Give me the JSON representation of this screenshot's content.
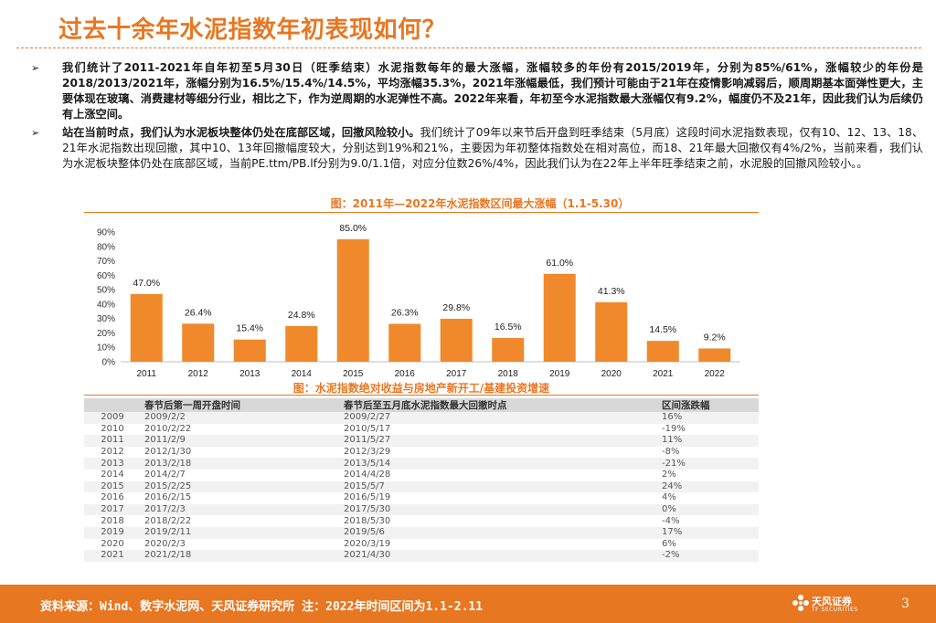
{
  "header": {
    "title": "过去十余年水泥指数年初表现如何？"
  },
  "bullets": [
    {
      "mark": "➢",
      "bold": "我们统计了2011-2021年自年初至5月30日（旺季结束）水泥指数每年的最大涨幅，涨幅较多的年份有2015/2019年，分别为85%/61%，涨幅较少的年份是2018/2013/2021年，涨幅分别为16.5%/15.4%/14.5%，平均涨幅35.3%，2021年涨幅最低，我们预计可能由于21年在疫情影响减弱后，顺周期基本面弹性更大，主要体现在玻璃、消费建材等细分行业，相比之下，作为逆周期的水泥弹性不高。2022年来看，年初至今水泥指数最大涨幅仅有9.2%，幅度仍不及21年，因此我们认为后续仍有上涨空间。",
      "normal": ""
    },
    {
      "mark": "➢",
      "bold": "站在当前时点，我们认为水泥板块整体仍处在底部区域，回撤风险较小。",
      "normal": "我们统计了09年以来节后开盘到旺季结束（5月底）这段时间水泥指数表现，仅有10、12、13、18、21年水泥指数出现回撤，其中10、13年回撤幅度较大，分别达到19%和21%，主要因为年初整体指数处在相对高位，而18、21年最大回撤仅有4%/2%，当前来看，我们认为水泥板块整体仍处在底部区域，当前PE.ttm/PB.lf分别为9.0/1.1倍，对应分位数26%/4%，因此我们认为在22年上半年旺季结束之前，水泥股的回撤风险较小。。"
    }
  ],
  "chart_data": {
    "type": "bar",
    "title": "图：2011年—2022年水泥指数区间最大涨幅（1.1-5.30）",
    "categories": [
      "2011",
      "2012",
      "2013",
      "2014",
      "2015",
      "2016",
      "2017",
      "2018",
      "2019",
      "2020",
      "2021",
      "2022"
    ],
    "values": [
      47.0,
      26.4,
      15.4,
      24.8,
      85.0,
      26.3,
      29.8,
      16.5,
      61.0,
      41.3,
      14.5,
      9.2
    ],
    "data_labels": [
      "47.0%",
      "26.4%",
      "15.4%",
      "24.8%",
      "85.0%",
      "26.3%",
      "29.8%",
      "16.5%",
      "61.0%",
      "41.3%",
      "14.5%",
      "9.2%"
    ],
    "ylim": [
      0,
      90
    ],
    "yticks": [
      "0%",
      "10%",
      "20%",
      "30%",
      "40%",
      "50%",
      "60%",
      "70%",
      "80%",
      "90%"
    ],
    "xlabel": "",
    "ylabel": "",
    "bar_color": "#f0892b"
  },
  "table": {
    "title": "图：水泥指数绝对收益与房地产新开工/基建投资增速",
    "headers": [
      "",
      "春节后第一周开盘时间",
      "春节后至五月底水泥指数最大回撤时点",
      "区间涨跌幅"
    ],
    "rows": [
      [
        "2009",
        "2009/2/2",
        "2009/2/27",
        "16%"
      ],
      [
        "2010",
        "2010/2/22",
        "2010/5/17",
        "-19%"
      ],
      [
        "2011",
        "2011/2/9",
        "2011/5/27",
        "11%"
      ],
      [
        "2012",
        "2012/1/30",
        "2012/3/29",
        "-8%"
      ],
      [
        "2013",
        "2013/2/18",
        "2013/5/14",
        "-21%"
      ],
      [
        "2014",
        "2014/2/7",
        "2014/4/28",
        "2%"
      ],
      [
        "2015",
        "2015/2/25",
        "2015/5/7",
        "24%"
      ],
      [
        "2016",
        "2016/2/15",
        "2016/5/19",
        "4%"
      ],
      [
        "2017",
        "2017/2/3",
        "2017/5/30",
        "0%"
      ],
      [
        "2018",
        "2018/2/22",
        "2018/5/30",
        "-4%"
      ],
      [
        "2019",
        "2019/2/11",
        "2019/5/6",
        "17%"
      ],
      [
        "2020",
        "2020/2/3",
        "2020/3/19",
        "6%"
      ],
      [
        "2021",
        "2021/2/18",
        "2021/4/30",
        "-2%"
      ]
    ]
  },
  "footer": {
    "source": "资料来源：Wind、数字水泥网、天风证券研究所  注：2022年时间区间为1.1-2.11",
    "brand": "天风证券",
    "brand_sub": "TF SECURITIES",
    "page": "3"
  },
  "colors": {
    "accent": "#e87722",
    "bar": "#f0892b"
  }
}
